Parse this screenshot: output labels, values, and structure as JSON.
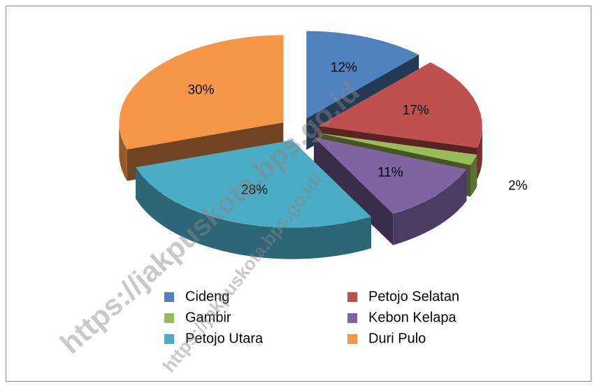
{
  "chart_data": {
    "type": "pie",
    "categories": [
      "Cideng",
      "Petojo Selatan",
      "Gambir",
      "Kebon Kelapa",
      "Petojo Utara",
      "Duri Pulo"
    ],
    "values": [
      12,
      17,
      2,
      11,
      28,
      30
    ],
    "value_labels": [
      "12%",
      "17%",
      "2%",
      "11%",
      "28%",
      "30%"
    ],
    "colors": [
      "#4f81bd",
      "#c0504d",
      "#9bbb59",
      "#8064a2",
      "#4bacc6",
      "#f79646"
    ],
    "legend": "bottom",
    "watermarks": [
      "https://jakpuskota.bps.go.id",
      "https://jakpuskota.bps.go.id/"
    ]
  }
}
